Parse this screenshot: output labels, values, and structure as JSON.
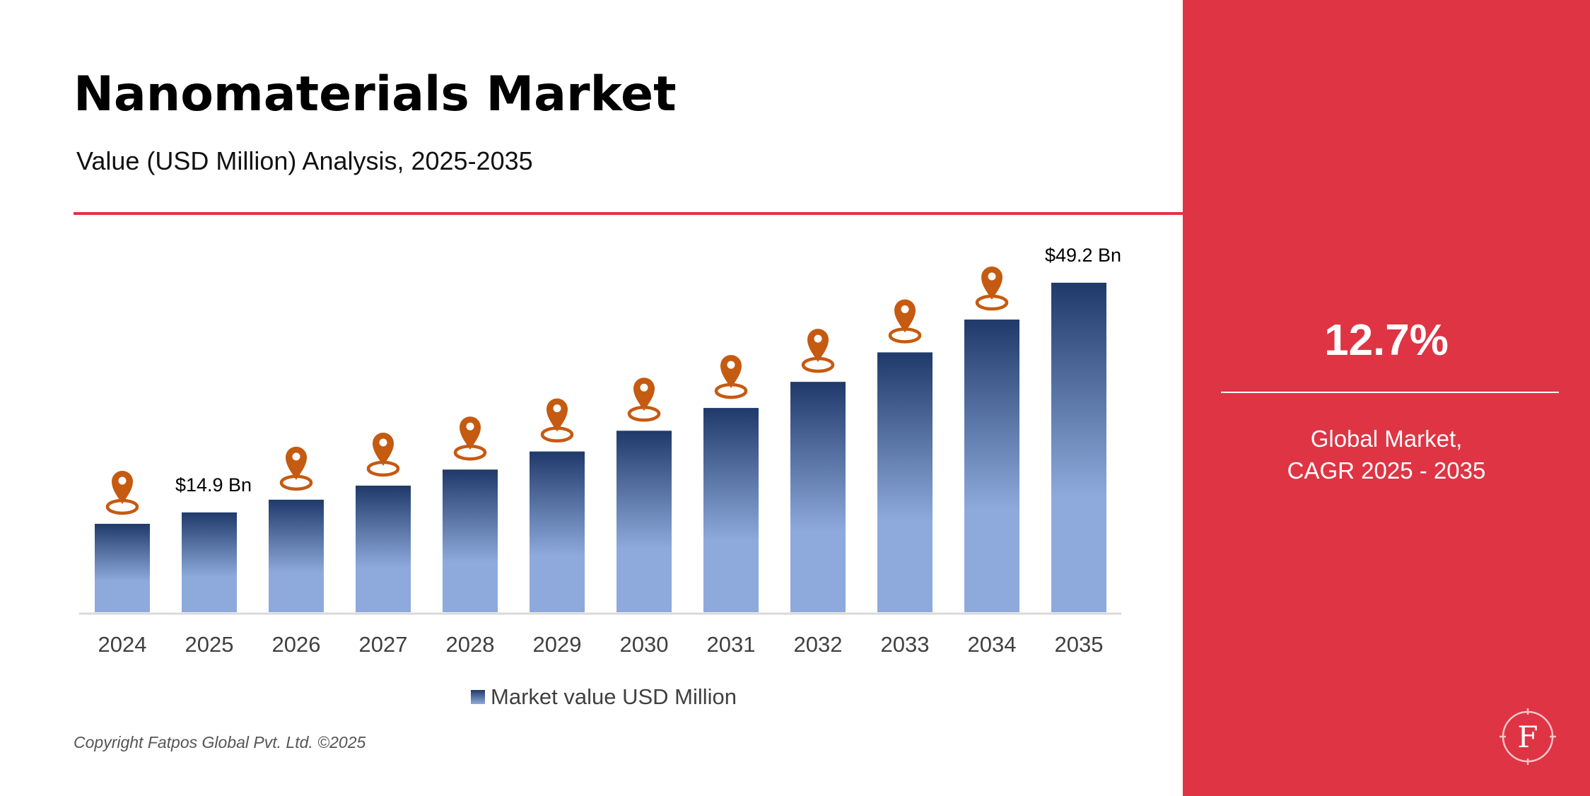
{
  "header": {
    "title": "Nanomaterials Market",
    "subtitle": "Value (USD Million) Analysis, 2025-2035"
  },
  "chart_data": {
    "type": "bar",
    "title": "Nanomaterials Market",
    "subtitle": "Value (USD Million) Analysis, 2025-2035",
    "categories": [
      "2024",
      "2025",
      "2026",
      "2027",
      "2028",
      "2029",
      "2030",
      "2031",
      "2032",
      "2033",
      "2034",
      "2035"
    ],
    "series": [
      {
        "name": "Market value USD Million",
        "values": [
          13200,
          14900,
          16800,
          18900,
          21300,
          24000,
          27100,
          30500,
          34400,
          38800,
          43700,
          49200
        ]
      }
    ],
    "data_labels": [
      {
        "category": "2025",
        "text": "$14.9 Bn"
      },
      {
        "category": "2035",
        "text": "$49.2 Bn"
      }
    ],
    "location_markers": [
      "2024",
      "2026",
      "2027",
      "2028",
      "2029",
      "2030",
      "2031",
      "2032",
      "2033",
      "2034"
    ],
    "ylim": [
      0,
      55000
    ],
    "grid": false,
    "legend": "bottom-center",
    "colors": {
      "bar_top": "#1f3a6a",
      "bar_bottom": "#8eaadc",
      "marker": "#c55a11",
      "axis": "#d9d9d9"
    }
  },
  "legend": {
    "label": "Market value USD Million"
  },
  "footer": {
    "copyright": "Copyright Fatpos Global Pvt. Ltd. ©2025"
  },
  "side_panel": {
    "cagr_value": "12.7%",
    "caption_line1": "Global Market,",
    "caption_line2": "CAGR 2025 - 2035",
    "logo_letter": "F",
    "background": "#df3444"
  }
}
